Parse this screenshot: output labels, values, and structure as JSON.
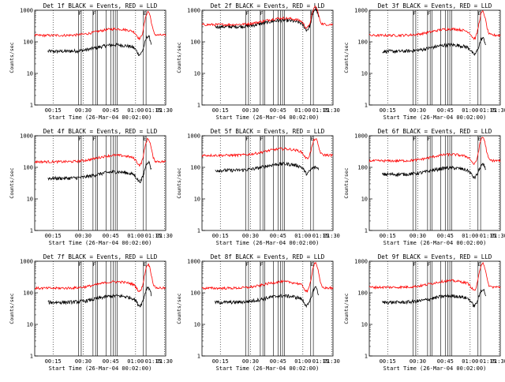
{
  "chart_data": [
    {
      "type": "line",
      "title": "Det 1f BLACK = Events, RED = LLD",
      "xlabel": "Start Time (26-Mar-04 00:02:00)",
      "ylabel": "Counts/sec",
      "yscale": "log",
      "ylim": [
        1,
        1000
      ],
      "x_ticks": [
        "00:15",
        "00:30",
        "00:45",
        "01:00",
        "01:15",
        "01:30"
      ],
      "y_ticks": [
        "1",
        "10",
        "100",
        "1000"
      ],
      "markers": [
        {
          "label": "F"
        },
        {
          "label": "F"
        },
        {
          "label": "E"
        }
      ],
      "series": [
        {
          "name": "Events",
          "color": "#000000",
          "baseline": 50,
          "peak": 150
        },
        {
          "name": "LLD",
          "color": "#ff0000",
          "baseline": 160,
          "peak": 900
        }
      ]
    },
    {
      "type": "line",
      "title": "Det 2f BLACK = Events, RED = LLD",
      "xlabel": "Start Time (26-Mar-04 00:02:00)",
      "ylabel": "Counts/sec",
      "yscale": "log",
      "ylim": [
        1,
        1000
      ],
      "x_ticks": [
        "00:15",
        "00:30",
        "00:45",
        "01:00",
        "01:15",
        "01:30"
      ],
      "y_ticks": [
        "1",
        "10",
        "100",
        "1000"
      ],
      "markers": [
        {
          "label": "F"
        },
        {
          "label": "F"
        },
        {
          "label": "E"
        }
      ],
      "series": [
        {
          "name": "Events",
          "color": "#000000",
          "baseline": 300,
          "peak": 1100
        },
        {
          "name": "LLD",
          "color": "#ff0000",
          "baseline": 350,
          "peak": 1300
        }
      ]
    },
    {
      "type": "line",
      "title": "Det 3f BLACK = Events, RED = LLD",
      "xlabel": "Start Time (26-Mar-04 00:02:00)",
      "ylabel": "Counts/sec",
      "yscale": "log",
      "ylim": [
        1,
        1000
      ],
      "x_ticks": [
        "00:15",
        "00:30",
        "00:45",
        "01:00",
        "01:15",
        "01:30"
      ],
      "y_ticks": [
        "1",
        "10",
        "100",
        "1000"
      ],
      "markers": [
        {
          "label": "F"
        },
        {
          "label": "F"
        },
        {
          "label": "E"
        }
      ],
      "series": [
        {
          "name": "Events",
          "color": "#000000",
          "baseline": 50,
          "peak": 130
        },
        {
          "name": "LLD",
          "color": "#ff0000",
          "baseline": 160,
          "peak": 900
        }
      ]
    },
    {
      "type": "line",
      "title": "Det 4f BLACK = Events, RED = LLD",
      "xlabel": "Start Time (26-Mar-04 00:02:00)",
      "ylabel": "Counts/sec",
      "yscale": "log",
      "ylim": [
        1,
        1000
      ],
      "x_ticks": [
        "00:15",
        "00:30",
        "00:45",
        "01:00",
        "01:15",
        "01:30"
      ],
      "y_ticks": [
        "1",
        "10",
        "100",
        "1000"
      ],
      "markers": [
        {
          "label": "F"
        },
        {
          "label": "F"
        },
        {
          "label": "E"
        }
      ],
      "series": [
        {
          "name": "Events",
          "color": "#000000",
          "baseline": 45,
          "peak": 150
        },
        {
          "name": "LLD",
          "color": "#ff0000",
          "baseline": 150,
          "peak": 800
        }
      ]
    },
    {
      "type": "line",
      "title": "Det 5f BLACK = Events, RED = LLD",
      "xlabel": "Start Time (26-Mar-04 00:02:00)",
      "ylabel": "Counts/sec",
      "yscale": "log",
      "ylim": [
        1,
        1000
      ],
      "x_ticks": [
        "00:15",
        "00:30",
        "00:45",
        "01:00",
        "01:15",
        "01:30"
      ],
      "y_ticks": [
        "1",
        "10",
        "100",
        "1000"
      ],
      "markers": [
        {
          "label": "F"
        },
        {
          "label": "F"
        },
        {
          "label": "E"
        }
      ],
      "series": [
        {
          "name": "Events",
          "color": "#000000",
          "baseline": 80,
          "peak": 100
        },
        {
          "name": "LLD",
          "color": "#ff0000",
          "baseline": 240,
          "peak": 800
        }
      ]
    },
    {
      "type": "line",
      "title": "Det 6f BLACK = Events, RED = LLD",
      "xlabel": "Start Time (26-Mar-04 00:02:00)",
      "ylabel": "Counts/sec",
      "yscale": "log",
      "ylim": [
        1,
        1000
      ],
      "x_ticks": [
        "00:15",
        "00:30",
        "00:45",
        "01:00",
        "01:15",
        "01:30"
      ],
      "y_ticks": [
        "1",
        "10",
        "100",
        "1000"
      ],
      "markers": [
        {
          "label": "F"
        },
        {
          "label": "F"
        },
        {
          "label": "E"
        }
      ],
      "series": [
        {
          "name": "Events",
          "color": "#000000",
          "baseline": 60,
          "peak": 120
        },
        {
          "name": "LLD",
          "color": "#ff0000",
          "baseline": 160,
          "peak": 900
        }
      ]
    },
    {
      "type": "line",
      "title": "Det 7f BLACK = Events, RED = LLD",
      "xlabel": "Start Time (26-Mar-04 00:02:00)",
      "ylabel": "Counts/sec",
      "yscale": "log",
      "ylim": [
        1,
        1000
      ],
      "x_ticks": [
        "00:15",
        "00:30",
        "00:45",
        "01:00",
        "01:15",
        "01:30"
      ],
      "y_ticks": [
        "1",
        "10",
        "100",
        "1000"
      ],
      "markers": [
        {
          "label": "F"
        },
        {
          "label": "F"
        },
        {
          "label": "E"
        }
      ],
      "series": [
        {
          "name": "Events",
          "color": "#000000",
          "baseline": 50,
          "peak": 150
        },
        {
          "name": "LLD",
          "color": "#ff0000",
          "baseline": 140,
          "peak": 800
        }
      ]
    },
    {
      "type": "line",
      "title": "Det 8f BLACK = Events, RED = LLD",
      "xlabel": "Start Time (26-Mar-04 00:02:00)",
      "ylabel": "Counts/sec",
      "yscale": "log",
      "ylim": [
        1,
        1000
      ],
      "x_ticks": [
        "00:15",
        "00:30",
        "00:45",
        "01:00",
        "01:15",
        "01:30"
      ],
      "y_ticks": [
        "1",
        "10",
        "100",
        "1000"
      ],
      "markers": [
        {
          "label": "F"
        },
        {
          "label": "F"
        },
        {
          "label": "E"
        }
      ],
      "series": [
        {
          "name": "Events",
          "color": "#000000",
          "baseline": 50,
          "peak": 150
        },
        {
          "name": "LLD",
          "color": "#ff0000",
          "baseline": 140,
          "peak": 900
        }
      ]
    },
    {
      "type": "line",
      "title": "Det 9f BLACK = Events, RED = LLD",
      "xlabel": "Start Time (26-Mar-04 00:02:00)",
      "ylabel": "Counts/sec",
      "yscale": "log",
      "ylim": [
        1,
        1000
      ],
      "x_ticks": [
        "00:15",
        "00:30",
        "00:45",
        "01:00",
        "01:15",
        "01:30"
      ],
      "y_ticks": [
        "1",
        "10",
        "100",
        "1000"
      ],
      "markers": [
        {
          "label": "F"
        },
        {
          "label": "F"
        },
        {
          "label": "E"
        }
      ],
      "series": [
        {
          "name": "Events",
          "color": "#000000",
          "baseline": 50,
          "peak": 130
        },
        {
          "name": "LLD",
          "color": "#ff0000",
          "baseline": 150,
          "peak": 900
        }
      ]
    }
  ]
}
